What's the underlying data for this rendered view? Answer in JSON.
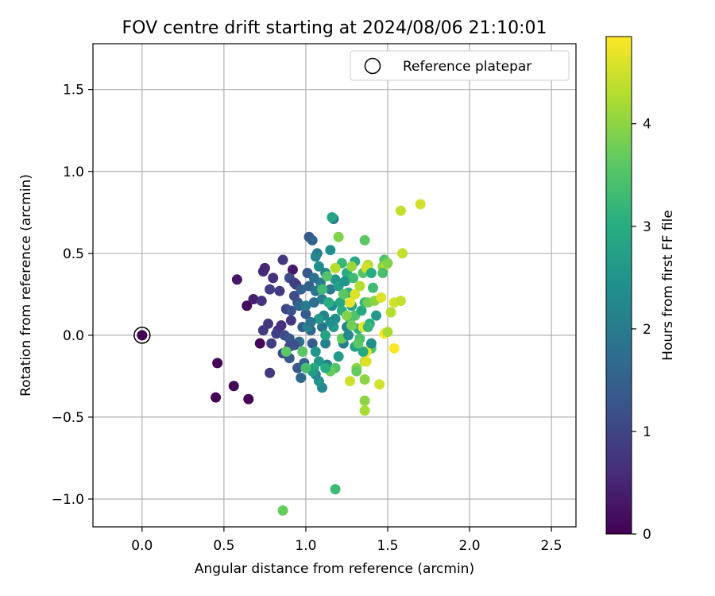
{
  "chart_data": {
    "type": "scatter",
    "title": "FOV centre drift starting at 2024/08/06 21:10:01",
    "xlabel": "Angular distance from reference (arcmin)",
    "ylabel": "Rotation from reference (arcmin)",
    "xlim": [
      -0.3,
      2.65
    ],
    "ylim": [
      -1.17,
      1.78
    ],
    "xticks": [
      0.0,
      0.5,
      1.0,
      1.5,
      2.0,
      2.5
    ],
    "xtick_labels": [
      "0.0",
      "0.5",
      "1.0",
      "1.5",
      "2.0",
      "2.5"
    ],
    "yticks": [
      -1.0,
      -0.5,
      0.0,
      0.5,
      1.0,
      1.5
    ],
    "ytick_labels": [
      "−1.0",
      "−0.5",
      "0.0",
      "0.5",
      "1.0",
      "1.5"
    ],
    "grid": true,
    "legend": {
      "position": "top-right",
      "entries": [
        "Reference platepar"
      ]
    },
    "colorbar": {
      "label": "Hours from first FF file",
      "colormap": "viridis",
      "range": [
        0,
        4.85
      ],
      "ticks": [
        0,
        1,
        2,
        3,
        4
      ],
      "tick_labels": [
        "0",
        "1",
        "2",
        "3",
        "4"
      ]
    },
    "reference_point": {
      "x": 0.0,
      "y": 0.0,
      "hours": 0.0
    },
    "points": [
      [
        0.46,
        -0.17,
        0.05
      ],
      [
        0.45,
        -0.38,
        0.05
      ],
      [
        0.56,
        -0.31,
        0.05
      ],
      [
        0.65,
        -0.39,
        0.05
      ],
      [
        0.64,
        0.18,
        0.1
      ],
      [
        0.72,
        -0.05,
        0.1
      ],
      [
        0.58,
        0.34,
        0.3
      ],
      [
        0.68,
        0.22,
        0.4
      ],
      [
        0.74,
        0.39,
        0.6
      ],
      [
        0.75,
        0.41,
        0.5
      ],
      [
        0.73,
        0.21,
        0.7
      ],
      [
        0.8,
        0.35,
        0.7
      ],
      [
        0.78,
        0.28,
        0.9
      ],
      [
        0.77,
        0.07,
        0.8
      ],
      [
        0.74,
        0.03,
        0.8
      ],
      [
        0.79,
        -0.05,
        0.9
      ],
      [
        0.78,
        -0.23,
        0.8
      ],
      [
        0.86,
        0.46,
        0.8
      ],
      [
        0.92,
        0.4,
        0.3
      ],
      [
        0.9,
        0.35,
        1.1
      ],
      [
        0.94,
        0.31,
        0.5
      ],
      [
        0.93,
        0.32,
        0.9
      ],
      [
        0.93,
        0.24,
        1.1
      ],
      [
        0.88,
        0.16,
        1.0
      ],
      [
        0.91,
        0.15,
        1.2
      ],
      [
        0.84,
        0.27,
        0.8
      ],
      [
        0.85,
        0.06,
        0.7
      ],
      [
        0.83,
        0.03,
        0.6
      ],
      [
        0.82,
        0.01,
        0.9
      ],
      [
        0.87,
        0.0,
        1.1
      ],
      [
        0.9,
        -0.02,
        1.3
      ],
      [
        0.91,
        0.09,
        0.8
      ],
      [
        0.9,
        -0.07,
        1.0
      ],
      [
        0.86,
        -0.11,
        1.1
      ],
      [
        0.9,
        -0.14,
        1.3
      ],
      [
        0.95,
        -0.2,
        1.3
      ],
      [
        0.97,
        -0.26,
        1.6
      ],
      [
        0.99,
        -0.17,
        1.5
      ],
      [
        0.95,
        0.2,
        1.2
      ],
      [
        0.98,
        0.05,
        1.4
      ],
      [
        0.96,
        -0.04,
        1.7
      ],
      [
        1.0,
        0.13,
        1.4
      ],
      [
        1.02,
        0.3,
        1.5
      ],
      [
        1.01,
        0.38,
        1.3
      ],
      [
        1.02,
        0.6,
        1.3
      ],
      [
        1.04,
        0.58,
        1.5
      ],
      [
        1.05,
        0.2,
        1.7
      ],
      [
        1.03,
        0.03,
        1.6
      ],
      [
        1.04,
        -0.05,
        1.4
      ],
      [
        1.06,
        0.27,
        1.9
      ],
      [
        1.07,
        0.5,
        2.0
      ],
      [
        1.06,
        0.48,
        2.2
      ],
      [
        1.08,
        0.42,
        2.4
      ],
      [
        1.09,
        0.32,
        2.0
      ],
      [
        1.1,
        0.22,
        2.1
      ],
      [
        1.11,
        0.12,
        2.2
      ],
      [
        1.1,
        0.05,
        1.9
      ],
      [
        1.12,
        -0.05,
        2.1
      ],
      [
        1.13,
        -0.18,
        2.1
      ],
      [
        1.1,
        -0.32,
        2.3
      ],
      [
        1.08,
        -0.28,
        2.5
      ],
      [
        1.06,
        -0.24,
        2.2
      ],
      [
        1.08,
        -0.16,
        2.6
      ],
      [
        1.12,
        0.38,
        2.2
      ],
      [
        1.15,
        0.52,
        2.4
      ],
      [
        1.17,
        0.71,
        1.9
      ],
      [
        1.16,
        0.72,
        2.8
      ],
      [
        1.18,
        0.34,
        2.5
      ],
      [
        1.15,
        0.28,
        2.0
      ],
      [
        1.16,
        0.18,
        2.3
      ],
      [
        1.18,
        0.1,
        2.4
      ],
      [
        1.17,
        0.05,
        2.6
      ],
      [
        1.2,
        0.3,
        2.7
      ],
      [
        1.21,
        0.2,
        2.9
      ],
      [
        1.22,
        0.15,
        3.0
      ],
      [
        1.2,
        0.6,
        3.9
      ],
      [
        1.22,
        0.44,
        3.2
      ],
      [
        1.25,
        0.38,
        3.0
      ],
      [
        1.24,
        0.33,
        2.5
      ],
      [
        1.26,
        0.26,
        3.1
      ],
      [
        1.28,
        0.18,
        2.8
      ],
      [
        1.27,
        0.1,
        3.3
      ],
      [
        1.3,
        0.45,
        2.9
      ],
      [
        1.29,
        0.35,
        3.3
      ],
      [
        1.3,
        0.12,
        3.5
      ],
      [
        1.32,
        0.04,
        3.1
      ],
      [
        1.33,
        -0.02,
        3.4
      ],
      [
        1.3,
        -0.07,
        2.8
      ],
      [
        1.25,
        0.05,
        2.2
      ],
      [
        1.23,
        -0.05,
        2.0
      ],
      [
        1.2,
        -0.13,
        2.6
      ],
      [
        1.18,
        -0.2,
        3.5
      ],
      [
        1.15,
        -0.22,
        3.7
      ],
      [
        1.12,
        -0.2,
        3.0
      ],
      [
        1.05,
        -0.2,
        2.9
      ],
      [
        1.04,
        -0.22,
        2.7
      ],
      [
        1.0,
        -0.2,
        3.4
      ],
      [
        0.98,
        -0.1,
        3.6
      ],
      [
        0.88,
        -0.1,
        3.6
      ],
      [
        1.34,
        0.15,
        2.9
      ],
      [
        1.36,
        0.2,
        3.2
      ],
      [
        1.35,
        0.38,
        3.5
      ],
      [
        1.36,
        0.58,
        3.6
      ],
      [
        1.38,
        0.43,
        4.3
      ],
      [
        1.37,
        0.41,
        4.5
      ],
      [
        1.4,
        0.38,
        3.0
      ],
      [
        1.41,
        0.29,
        3.3
      ],
      [
        1.38,
        0.2,
        3.8
      ],
      [
        1.42,
        0.21,
        4.0
      ],
      [
        1.39,
        0.07,
        3.0
      ],
      [
        1.4,
        -0.08,
        3.5
      ],
      [
        1.37,
        -0.1,
        4.7
      ],
      [
        1.36,
        -0.16,
        4.4
      ],
      [
        1.37,
        -0.16,
        4.6
      ],
      [
        1.31,
        -0.2,
        4.0
      ],
      [
        1.31,
        -0.22,
        3.7
      ],
      [
        1.36,
        -0.27,
        4.0
      ],
      [
        1.36,
        -0.4,
        4.0
      ],
      [
        1.36,
        -0.46,
        4.2
      ],
      [
        1.27,
        -0.28,
        4.5
      ],
      [
        1.45,
        -0.3,
        4.5
      ],
      [
        1.46,
        0.23,
        4.6
      ],
      [
        1.47,
        0.42,
        4.0
      ],
      [
        1.48,
        0.46,
        3.5
      ],
      [
        1.49,
        0.43,
        4.3
      ],
      [
        1.5,
        0.44,
        3.9
      ],
      [
        1.47,
        0.38,
        3.4
      ],
      [
        1.48,
        0.01,
        4.8
      ],
      [
        1.5,
        0.02,
        4.2
      ],
      [
        1.52,
        0.14,
        4.3
      ],
      [
        1.54,
        0.2,
        4.5
      ],
      [
        1.54,
        -0.08,
        4.85
      ],
      [
        1.58,
        0.21,
        4.4
      ],
      [
        1.59,
        0.5,
        4.4
      ],
      [
        1.58,
        0.76,
        4.4
      ],
      [
        1.7,
        0.8,
        4.5
      ],
      [
        1.27,
        0.2,
        4.7
      ],
      [
        1.3,
        0.25,
        4.6
      ],
      [
        1.33,
        0.3,
        4.3
      ],
      [
        1.35,
        0.05,
        4.7
      ],
      [
        1.28,
        0.06,
        3.8
      ],
      [
        1.22,
        -0.02,
        3.7
      ],
      [
        1.18,
        0.41,
        4.3
      ],
      [
        1.1,
        0.28,
        3.3
      ],
      [
        1.14,
        0.2,
        3.0
      ],
      [
        1.18,
        -0.94,
        3.3
      ],
      [
        0.86,
        -1.07,
        3.7
      ],
      [
        1.4,
        -0.05,
        2.4
      ],
      [
        1.35,
        -0.1,
        2.9
      ],
      [
        1.26,
        0.0,
        2.3
      ],
      [
        1.15,
        0.08,
        2.4
      ],
      [
        1.08,
        0.1,
        2.6
      ],
      [
        1.01,
        0.05,
        2.1
      ],
      [
        0.96,
        0.18,
        1.6
      ],
      [
        0.97,
        0.28,
        1.5
      ],
      [
        1.05,
        0.35,
        1.8
      ],
      [
        1.03,
        0.08,
        1.9
      ],
      [
        1.13,
        0.36,
        3.5
      ],
      [
        1.25,
        0.12,
        3.9
      ],
      [
        1.43,
        0.12,
        2.6
      ],
      [
        1.38,
        0.05,
        3.2
      ],
      [
        1.32,
        -0.05,
        3.6
      ],
      [
        1.12,
        0.0,
        2.8
      ],
      [
        1.06,
        -0.1,
        2.5
      ],
      [
        0.93,
        -0.06,
        1.2
      ],
      [
        1.0,
        0.18,
        2.0
      ],
      [
        1.23,
        0.25,
        3.6
      ],
      [
        1.28,
        0.42,
        4.1
      ]
    ]
  }
}
